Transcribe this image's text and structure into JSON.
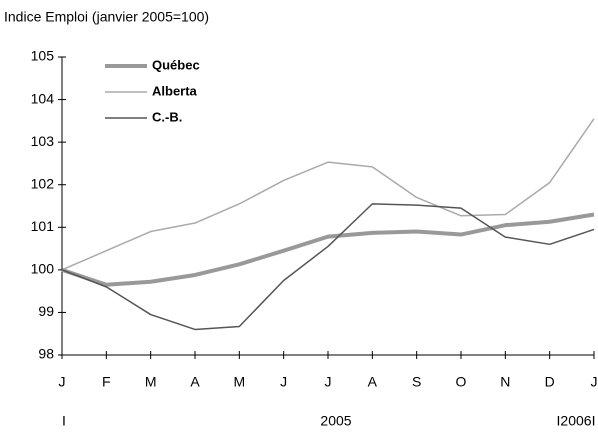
{
  "chart_data": {
    "type": "line",
    "title": "Indice Emploi (janvier 2005=100)",
    "categories": [
      "J",
      "F",
      "M",
      "A",
      "M",
      "J",
      "J",
      "A",
      "S",
      "O",
      "N",
      "D",
      "J"
    ],
    "x_group_labels": [
      "I",
      "2005",
      "I2006I"
    ],
    "series": [
      {
        "name": "Québec",
        "color": "#999999",
        "width": 4,
        "values": [
          100,
          99.65,
          99.72,
          99.88,
          100.13,
          100.45,
          100.78,
          100.87,
          100.9,
          100.83,
          101.05,
          101.13,
          101.3
        ]
      },
      {
        "name": "Alberta",
        "color": "#aaaaaa",
        "width": 1.5,
        "values": [
          100,
          100.45,
          100.9,
          101.1,
          101.55,
          102.1,
          102.53,
          102.42,
          101.7,
          101.27,
          101.3,
          102.05,
          103.55
        ]
      },
      {
        "name": "C.-B.",
        "color": "#555555",
        "width": 1.5,
        "values": [
          100,
          99.6,
          98.95,
          98.6,
          98.67,
          99.75,
          100.55,
          101.55,
          101.52,
          101.45,
          100.77,
          100.6,
          100.95
        ]
      }
    ],
    "ylim": [
      98,
      105
    ],
    "yticks": [
      98,
      99,
      100,
      101,
      102,
      103,
      104,
      105
    ],
    "grid": false,
    "legend": "upper left"
  }
}
